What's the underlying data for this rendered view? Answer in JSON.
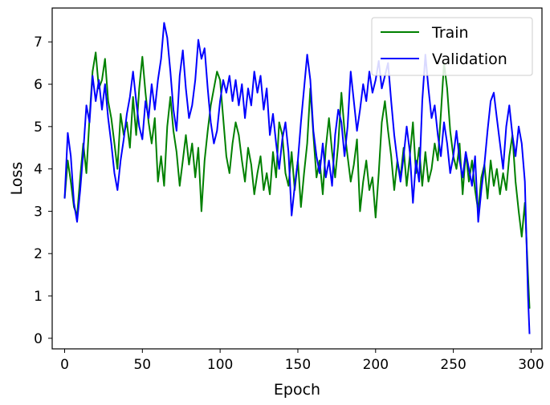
{
  "chart_data": {
    "type": "line",
    "title": "",
    "xlabel": "Epoch",
    "ylabel": "Loss",
    "xlim": [
      -8,
      307
    ],
    "ylim": [
      -0.25,
      7.8
    ],
    "xticks": [
      0,
      50,
      100,
      150,
      200,
      250,
      300
    ],
    "yticks": [
      0,
      1,
      2,
      3,
      4,
      5,
      6,
      7
    ],
    "grid": false,
    "legend_position": "top-right",
    "series": [
      {
        "name": "Train",
        "color": "#008000",
        "points": [
          [
            0,
            3.3
          ],
          [
            2,
            4.2
          ],
          [
            4,
            3.7
          ],
          [
            6,
            3.1
          ],
          [
            8,
            2.9
          ],
          [
            10,
            3.8
          ],
          [
            12,
            4.6
          ],
          [
            14,
            3.9
          ],
          [
            16,
            5.2
          ],
          [
            18,
            6.3
          ],
          [
            20,
            6.75
          ],
          [
            22,
            5.9
          ],
          [
            24,
            6.1
          ],
          [
            26,
            6.6
          ],
          [
            28,
            5.6
          ],
          [
            30,
            5.2
          ],
          [
            32,
            4.6
          ],
          [
            34,
            4.0
          ],
          [
            36,
            5.3
          ],
          [
            38,
            4.8
          ],
          [
            40,
            5.1
          ],
          [
            42,
            4.5
          ],
          [
            44,
            5.7
          ],
          [
            46,
            4.8
          ],
          [
            48,
            5.9
          ],
          [
            50,
            6.65
          ],
          [
            52,
            5.8
          ],
          [
            54,
            5.1
          ],
          [
            56,
            4.6
          ],
          [
            58,
            5.2
          ],
          [
            60,
            3.7
          ],
          [
            62,
            4.3
          ],
          [
            64,
            3.6
          ],
          [
            66,
            5.0
          ],
          [
            68,
            5.7
          ],
          [
            70,
            4.9
          ],
          [
            72,
            4.4
          ],
          [
            74,
            3.6
          ],
          [
            76,
            4.2
          ],
          [
            78,
            4.8
          ],
          [
            80,
            4.1
          ],
          [
            82,
            4.6
          ],
          [
            84,
            3.8
          ],
          [
            86,
            4.5
          ],
          [
            88,
            3.0
          ],
          [
            90,
            4.2
          ],
          [
            92,
            4.9
          ],
          [
            94,
            5.5
          ],
          [
            96,
            5.9
          ],
          [
            98,
            6.3
          ],
          [
            100,
            6.1
          ],
          [
            102,
            5.2
          ],
          [
            104,
            4.3
          ],
          [
            106,
            3.9
          ],
          [
            108,
            4.6
          ],
          [
            110,
            5.1
          ],
          [
            112,
            4.8
          ],
          [
            114,
            4.2
          ],
          [
            116,
            3.7
          ],
          [
            118,
            4.5
          ],
          [
            120,
            4.1
          ],
          [
            122,
            3.4
          ],
          [
            124,
            3.9
          ],
          [
            126,
            4.3
          ],
          [
            128,
            3.5
          ],
          [
            130,
            3.9
          ],
          [
            132,
            3.4
          ],
          [
            134,
            4.4
          ],
          [
            136,
            3.8
          ],
          [
            138,
            5.1
          ],
          [
            140,
            4.8
          ],
          [
            142,
            3.9
          ],
          [
            144,
            3.6
          ],
          [
            146,
            4.4
          ],
          [
            148,
            3.5
          ],
          [
            150,
            4.2
          ],
          [
            152,
            3.1
          ],
          [
            154,
            3.9
          ],
          [
            156,
            4.6
          ],
          [
            158,
            5.9
          ],
          [
            160,
            4.8
          ],
          [
            162,
            3.8
          ],
          [
            164,
            4.2
          ],
          [
            166,
            3.4
          ],
          [
            168,
            4.5
          ],
          [
            170,
            5.2
          ],
          [
            172,
            4.4
          ],
          [
            174,
            3.8
          ],
          [
            176,
            4.6
          ],
          [
            178,
            5.8
          ],
          [
            180,
            4.9
          ],
          [
            182,
            4.3
          ],
          [
            184,
            3.7
          ],
          [
            186,
            4.1
          ],
          [
            188,
            4.7
          ],
          [
            190,
            3.0
          ],
          [
            192,
            3.7
          ],
          [
            194,
            4.2
          ],
          [
            196,
            3.5
          ],
          [
            198,
            3.8
          ],
          [
            200,
            2.85
          ],
          [
            202,
            3.9
          ],
          [
            204,
            5.1
          ],
          [
            206,
            5.6
          ],
          [
            208,
            4.9
          ],
          [
            210,
            4.3
          ],
          [
            212,
            3.5
          ],
          [
            214,
            4.2
          ],
          [
            216,
            3.8
          ],
          [
            218,
            4.5
          ],
          [
            220,
            3.6
          ],
          [
            222,
            4.3
          ],
          [
            224,
            5.1
          ],
          [
            226,
            3.9
          ],
          [
            228,
            4.5
          ],
          [
            230,
            3.6
          ],
          [
            232,
            4.4
          ],
          [
            234,
            3.7
          ],
          [
            236,
            4.0
          ],
          [
            238,
            4.6
          ],
          [
            240,
            4.2
          ],
          [
            242,
            5.3
          ],
          [
            244,
            6.5
          ],
          [
            246,
            5.9
          ],
          [
            248,
            4.9
          ],
          [
            250,
            4.3
          ],
          [
            252,
            4.0
          ],
          [
            254,
            4.6
          ],
          [
            256,
            3.4
          ],
          [
            258,
            4.4
          ],
          [
            260,
            3.7
          ],
          [
            262,
            4.2
          ],
          [
            264,
            3.5
          ],
          [
            266,
            3.0
          ],
          [
            268,
            3.8
          ],
          [
            270,
            4.1
          ],
          [
            272,
            3.3
          ],
          [
            274,
            4.2
          ],
          [
            276,
            3.6
          ],
          [
            278,
            4.0
          ],
          [
            280,
            3.4
          ],
          [
            282,
            3.9
          ],
          [
            284,
            3.5
          ],
          [
            286,
            4.3
          ],
          [
            288,
            4.8
          ],
          [
            290,
            3.7
          ],
          [
            292,
            3.0
          ],
          [
            294,
            2.4
          ],
          [
            296,
            3.2
          ],
          [
            298,
            1.5
          ],
          [
            299,
            0.7
          ]
        ]
      },
      {
        "name": "Validation",
        "color": "#0000ff",
        "points": [
          [
            0,
            3.3
          ],
          [
            2,
            4.85
          ],
          [
            4,
            4.3
          ],
          [
            6,
            3.2
          ],
          [
            8,
            2.75
          ],
          [
            10,
            3.5
          ],
          [
            12,
            4.4
          ],
          [
            14,
            5.5
          ],
          [
            16,
            5.1
          ],
          [
            18,
            6.2
          ],
          [
            20,
            5.6
          ],
          [
            22,
            6.1
          ],
          [
            24,
            5.4
          ],
          [
            26,
            6.0
          ],
          [
            28,
            5.2
          ],
          [
            30,
            4.6
          ],
          [
            32,
            3.9
          ],
          [
            34,
            3.5
          ],
          [
            36,
            4.2
          ],
          [
            38,
            4.7
          ],
          [
            40,
            5.3
          ],
          [
            42,
            5.7
          ],
          [
            44,
            6.3
          ],
          [
            46,
            5.6
          ],
          [
            48,
            5.0
          ],
          [
            50,
            4.7
          ],
          [
            52,
            5.6
          ],
          [
            54,
            5.2
          ],
          [
            56,
            6.0
          ],
          [
            58,
            5.4
          ],
          [
            60,
            6.1
          ],
          [
            62,
            6.6
          ],
          [
            64,
            7.45
          ],
          [
            66,
            7.1
          ],
          [
            68,
            6.3
          ],
          [
            70,
            5.4
          ],
          [
            72,
            4.9
          ],
          [
            74,
            6.2
          ],
          [
            76,
            6.8
          ],
          [
            78,
            5.9
          ],
          [
            80,
            5.2
          ],
          [
            82,
            5.5
          ],
          [
            84,
            6.1
          ],
          [
            86,
            7.05
          ],
          [
            88,
            6.6
          ],
          [
            90,
            6.85
          ],
          [
            92,
            5.9
          ],
          [
            94,
            5.1
          ],
          [
            96,
            4.6
          ],
          [
            98,
            4.9
          ],
          [
            100,
            5.6
          ],
          [
            102,
            6.1
          ],
          [
            104,
            5.8
          ],
          [
            106,
            6.2
          ],
          [
            108,
            5.6
          ],
          [
            110,
            6.1
          ],
          [
            112,
            5.5
          ],
          [
            114,
            6.0
          ],
          [
            116,
            5.2
          ],
          [
            118,
            5.9
          ],
          [
            120,
            5.5
          ],
          [
            122,
            6.3
          ],
          [
            124,
            5.8
          ],
          [
            126,
            6.2
          ],
          [
            128,
            5.4
          ],
          [
            130,
            5.9
          ],
          [
            132,
            4.8
          ],
          [
            134,
            5.3
          ],
          [
            136,
            4.6
          ],
          [
            138,
            4.0
          ],
          [
            140,
            4.7
          ],
          [
            142,
            5.1
          ],
          [
            144,
            4.4
          ],
          [
            146,
            2.9
          ],
          [
            148,
            3.6
          ],
          [
            150,
            4.2
          ],
          [
            152,
            5.1
          ],
          [
            154,
            5.9
          ],
          [
            156,
            6.7
          ],
          [
            158,
            6.1
          ],
          [
            160,
            4.9
          ],
          [
            162,
            4.3
          ],
          [
            164,
            3.9
          ],
          [
            166,
            4.6
          ],
          [
            168,
            3.8
          ],
          [
            170,
            4.2
          ],
          [
            172,
            3.6
          ],
          [
            174,
            4.8
          ],
          [
            176,
            5.4
          ],
          [
            178,
            5.1
          ],
          [
            180,
            4.3
          ],
          [
            182,
            5.0
          ],
          [
            184,
            6.3
          ],
          [
            186,
            5.6
          ],
          [
            188,
            4.9
          ],
          [
            190,
            5.4
          ],
          [
            192,
            6.0
          ],
          [
            194,
            5.6
          ],
          [
            196,
            6.3
          ],
          [
            198,
            5.8
          ],
          [
            200,
            6.1
          ],
          [
            202,
            6.55
          ],
          [
            204,
            5.9
          ],
          [
            206,
            6.2
          ],
          [
            208,
            6.5
          ],
          [
            210,
            5.6
          ],
          [
            212,
            4.8
          ],
          [
            214,
            4.2
          ],
          [
            216,
            3.7
          ],
          [
            218,
            4.3
          ],
          [
            220,
            5.0
          ],
          [
            222,
            4.4
          ],
          [
            224,
            3.2
          ],
          [
            226,
            4.2
          ],
          [
            228,
            3.7
          ],
          [
            230,
            5.6
          ],
          [
            232,
            6.7
          ],
          [
            234,
            5.9
          ],
          [
            236,
            5.2
          ],
          [
            238,
            5.5
          ],
          [
            240,
            4.8
          ],
          [
            242,
            4.3
          ],
          [
            244,
            5.1
          ],
          [
            246,
            4.6
          ],
          [
            248,
            3.9
          ],
          [
            250,
            4.3
          ],
          [
            252,
            4.9
          ],
          [
            254,
            4.2
          ],
          [
            256,
            3.8
          ],
          [
            258,
            4.4
          ],
          [
            260,
            4.0
          ],
          [
            262,
            3.6
          ],
          [
            264,
            4.3
          ],
          [
            266,
            2.75
          ],
          [
            268,
            3.5
          ],
          [
            270,
            4.1
          ],
          [
            272,
            4.9
          ],
          [
            274,
            5.6
          ],
          [
            276,
            5.8
          ],
          [
            278,
            5.2
          ],
          [
            280,
            4.6
          ],
          [
            282,
            4.0
          ],
          [
            284,
            5.0
          ],
          [
            286,
            5.5
          ],
          [
            288,
            4.8
          ],
          [
            290,
            4.3
          ],
          [
            292,
            5.0
          ],
          [
            294,
            4.6
          ],
          [
            296,
            3.7
          ],
          [
            298,
            1.0
          ],
          [
            299,
            0.1
          ]
        ]
      }
    ]
  }
}
